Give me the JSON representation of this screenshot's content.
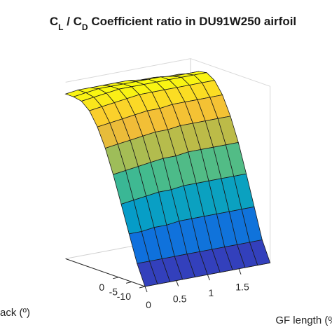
{
  "chart_data": {
    "type": "surface",
    "title_parts": [
      {
        "text": "C",
        "sub": false
      },
      {
        "text": "L",
        "sub": true
      },
      {
        "text": " / C",
        "sub": false
      },
      {
        "text": "D",
        "sub": true
      },
      {
        "text": " Coefficient ratio in DU91W250 airfoil",
        "sub": false
      }
    ],
    "xlabel": "GF length (%)",
    "ylabel": "ack (º)",
    "x_ticks": [
      "0",
      "0.5",
      "1",
      "1.5"
    ],
    "y_ticks": [
      "0",
      "-5",
      "-10"
    ],
    "x_range": [
      0,
      2
    ],
    "y_range": [
      -10,
      20
    ],
    "colormap": "parula",
    "grid": true,
    "mesh": {
      "gf_length": [
        0,
        0.2,
        0.4,
        0.6,
        0.8,
        1.0,
        1.2,
        1.4,
        1.6,
        1.8,
        2.0
      ],
      "angle_of_attack": [
        -10,
        -7,
        -4,
        -1,
        2,
        5,
        8,
        11,
        14,
        17,
        20
      ],
      "z_by_angle": [
        [
          0.0,
          0.0,
          0.0,
          0.0,
          0.0,
          0.0,
          0.0,
          0.0,
          0.0,
          0.0,
          0.0
        ],
        [
          0.12,
          0.12,
          0.12,
          0.12,
          0.12,
          0.12,
          0.12,
          0.12,
          0.12,
          0.12,
          0.12
        ],
        [
          0.28,
          0.28,
          0.29,
          0.29,
          0.3,
          0.3,
          0.3,
          0.3,
          0.3,
          0.3,
          0.3
        ],
        [
          0.44,
          0.45,
          0.46,
          0.47,
          0.47,
          0.48,
          0.48,
          0.48,
          0.48,
          0.48,
          0.48
        ],
        [
          0.6,
          0.61,
          0.62,
          0.63,
          0.64,
          0.64,
          0.65,
          0.65,
          0.65,
          0.65,
          0.65
        ],
        [
          0.74,
          0.75,
          0.76,
          0.77,
          0.78,
          0.78,
          0.79,
          0.79,
          0.79,
          0.79,
          0.79
        ],
        [
          0.85,
          0.86,
          0.87,
          0.88,
          0.89,
          0.89,
          0.9,
          0.9,
          0.9,
          0.9,
          0.9
        ],
        [
          0.93,
          0.94,
          0.95,
          0.96,
          0.97,
          0.97,
          0.97,
          0.97,
          0.97,
          0.97,
          0.97
        ],
        [
          0.97,
          0.98,
          0.99,
          1.0,
          1.0,
          1.0,
          1.0,
          1.0,
          1.0,
          1.0,
          1.0
        ],
        [
          0.98,
          0.99,
          1.0,
          1.0,
          1.0,
          1.0,
          1.0,
          1.0,
          0.99,
          0.99,
          0.99
        ],
        [
          0.98,
          0.99,
          0.99,
          0.99,
          0.99,
          0.99,
          0.98,
          0.98,
          0.97,
          0.97,
          0.96
        ]
      ]
    }
  }
}
